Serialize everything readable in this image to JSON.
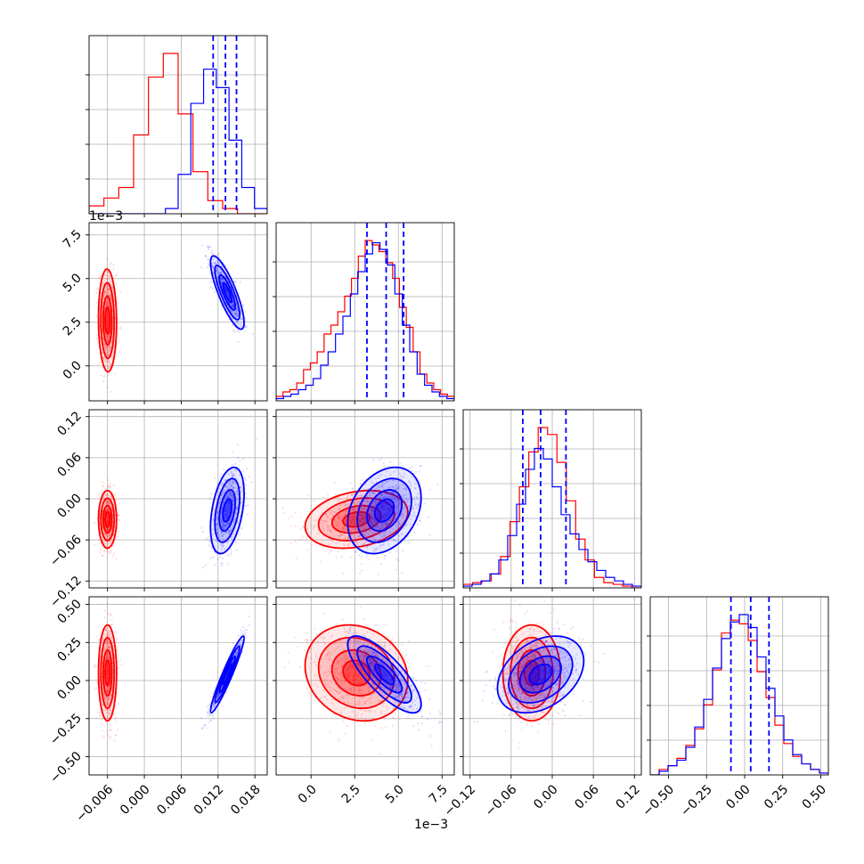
{
  "chart_data": {
    "type": "corner",
    "parameters": [
      {
        "range": [
          -0.009,
          0.02
        ],
        "ticks": [
          "−0.006",
          "0.000",
          "0.006",
          "0.012",
          "0.018"
        ],
        "tick_values": [
          -0.006,
          0.0,
          0.006,
          0.012,
          0.018
        ],
        "offset_label": "1e−3 "
      },
      {
        "range": [
          -2.0,
          8.2
        ],
        "ticks": [
          "0.0",
          "2.5",
          "5.0",
          "7.5"
        ],
        "tick_values": [
          0.0,
          2.5,
          5.0,
          7.5
        ],
        "offset_label": "1e−3"
      },
      {
        "range": [
          -0.13,
          0.13
        ],
        "ticks": [
          "−0.12",
          "−0.06",
          "0.00",
          "0.06",
          "0.12"
        ],
        "tick_values": [
          -0.12,
          -0.06,
          0.0,
          0.06,
          0.12
        ]
      },
      {
        "range": [
          -0.62,
          0.55
        ],
        "ticks": [
          "−0.50",
          "−0.25",
          "0.00",
          "0.25",
          "0.50"
        ],
        "tick_values": [
          -0.5,
          -0.25,
          0.0,
          0.25,
          0.5
        ]
      }
    ],
    "series": [
      {
        "color": "#ff0000",
        "means": [
          -0.006,
          2.6,
          -0.03,
          0.05
        ],
        "sds": [
          0.0007,
          1.4,
          0.02,
          0.15
        ],
        "corr": [
          [
            0,
            1,
            -0.05
          ],
          [
            0,
            2,
            0.0
          ],
          [
            0,
            3,
            0.0
          ],
          [
            1,
            2,
            0.25
          ],
          [
            1,
            3,
            -0.15
          ],
          [
            2,
            3,
            0.0
          ]
        ],
        "hists": [
          [
            0.03,
            0.06,
            0.1,
            0.3,
            0.52,
            0.61,
            0.38,
            0.16,
            0.05,
            0.02,
            0.0,
            0.0
          ],
          [
            0.02,
            0.04,
            0.05,
            0.08,
            0.14,
            0.17,
            0.22,
            0.3,
            0.34,
            0.4,
            0.47,
            0.55,
            0.65,
            0.72,
            0.7,
            0.67,
            0.62,
            0.55,
            0.42,
            0.33,
            0.22,
            0.12,
            0.08,
            0.05,
            0.03,
            0.02
          ],
          [
            0.02,
            0.03,
            0.04,
            0.08,
            0.18,
            0.38,
            0.58,
            0.78,
            0.92,
            0.88,
            0.72,
            0.5,
            0.28,
            0.16,
            0.06,
            0.03,
            0.02,
            0.01,
            0.0
          ],
          [
            0.0,
            0.03,
            0.05,
            0.09,
            0.16,
            0.25,
            0.38,
            0.57,
            0.77,
            0.84,
            0.82,
            0.73,
            0.56,
            0.42,
            0.27,
            0.17,
            0.1,
            0.06,
            0.03,
            0.01
          ]
        ]
      },
      {
        "color": "#0000ff",
        "means": [
          0.0135,
          4.2,
          -0.017,
          0.04
        ],
        "sds": [
          0.0013,
          1.0,
          0.03,
          0.12
        ],
        "corr": [
          [
            0,
            1,
            -0.82
          ],
          [
            0,
            2,
            0.4
          ],
          [
            0,
            3,
            0.95
          ],
          [
            1,
            2,
            0.3
          ],
          [
            1,
            3,
            -0.78
          ],
          [
            2,
            3,
            0.35
          ]
        ],
        "quantiles": [
          [
            0.0112,
            0.0132,
            0.015
          ],
          [
            3.2,
            4.3,
            5.3
          ],
          [
            -0.043,
            -0.017,
            0.02
          ],
          [
            -0.09,
            0.04,
            0.16
          ]
        ],
        "hists": [
          [
            0.0,
            0.0,
            0.0,
            0.0,
            0.0,
            0.0,
            0.02,
            0.15,
            0.42,
            0.55,
            0.48,
            0.28,
            0.1,
            0.02
          ],
          [
            0.01,
            0.02,
            0.03,
            0.05,
            0.07,
            0.1,
            0.16,
            0.22,
            0.3,
            0.38,
            0.48,
            0.58,
            0.66,
            0.71,
            0.68,
            0.61,
            0.48,
            0.34,
            0.22,
            0.12,
            0.07,
            0.04,
            0.02,
            0.01
          ],
          [
            0.01,
            0.02,
            0.04,
            0.08,
            0.16,
            0.3,
            0.48,
            0.68,
            0.8,
            0.74,
            0.58,
            0.42,
            0.31,
            0.22,
            0.15,
            0.1,
            0.06,
            0.04,
            0.02,
            0.01
          ],
          [
            0.0,
            0.02,
            0.05,
            0.08,
            0.15,
            0.26,
            0.41,
            0.58,
            0.74,
            0.83,
            0.87,
            0.8,
            0.64,
            0.47,
            0.32,
            0.19,
            0.11,
            0.06,
            0.03,
            0.01
          ]
        ]
      }
    ],
    "grid": true,
    "legend": false
  }
}
